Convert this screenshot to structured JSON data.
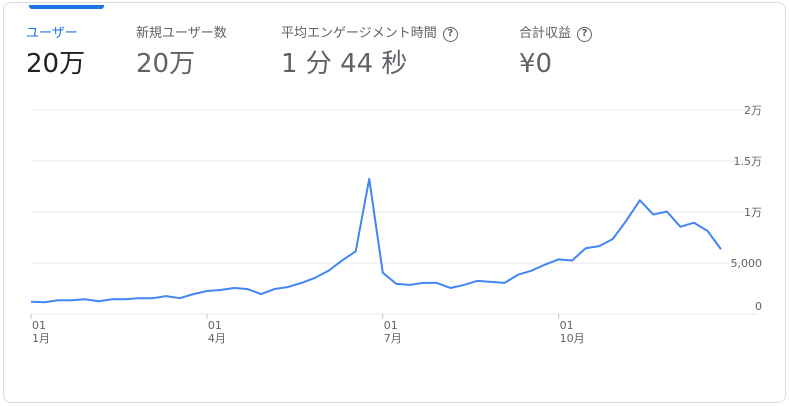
{
  "metrics": [
    {
      "label": "ユーザー",
      "value": "20万",
      "active": true,
      "help": false
    },
    {
      "label": "新規ユーザー数",
      "value": "20万",
      "active": false,
      "help": false
    },
    {
      "label": "平均エンゲージメント時間",
      "value": "1 分 44 秒",
      "active": false,
      "help": true
    },
    {
      "label": "合計収益",
      "value": "¥0",
      "active": false,
      "help": true
    }
  ],
  "help_glyph": "?",
  "colors": {
    "accent": "#1a73e8",
    "line": "#4285f4",
    "grid": "#e8eaed"
  },
  "chart_data": {
    "type": "line",
    "ylim": [
      0,
      20000
    ],
    "y_ticks": [
      {
        "value": 20000,
        "label": "2万"
      },
      {
        "value": 15000,
        "label": "1.5万"
      },
      {
        "value": 10000,
        "label": "1万"
      },
      {
        "value": 5000,
        "label": "5,000"
      },
      {
        "value": 0,
        "label": "0"
      }
    ],
    "x_ticks": [
      {
        "index": 0,
        "day": "01",
        "month": "1月"
      },
      {
        "index": 13,
        "day": "01",
        "month": "4月"
      },
      {
        "index": 26,
        "day": "01",
        "month": "7月"
      },
      {
        "index": 39,
        "day": "01",
        "month": "10月"
      }
    ],
    "series": [
      {
        "values": [
          1200,
          1150,
          1350,
          1350,
          1450,
          1250,
          1450,
          1450,
          1550,
          1550,
          1750,
          1550,
          1950,
          2250,
          2350,
          2550,
          2450,
          1950,
          2450,
          2650,
          3050,
          3550,
          4250,
          5250,
          6150,
          13250,
          4050,
          2950,
          2850,
          3050,
          3050,
          2550,
          2850,
          3250,
          3150,
          3050,
          3850,
          4250,
          4850,
          5350,
          5250,
          6450,
          6650,
          7350,
          9150,
          11150,
          9750,
          10050,
          8550,
          8950,
          8150,
          6350
        ]
      }
    ],
    "grid": true
  }
}
